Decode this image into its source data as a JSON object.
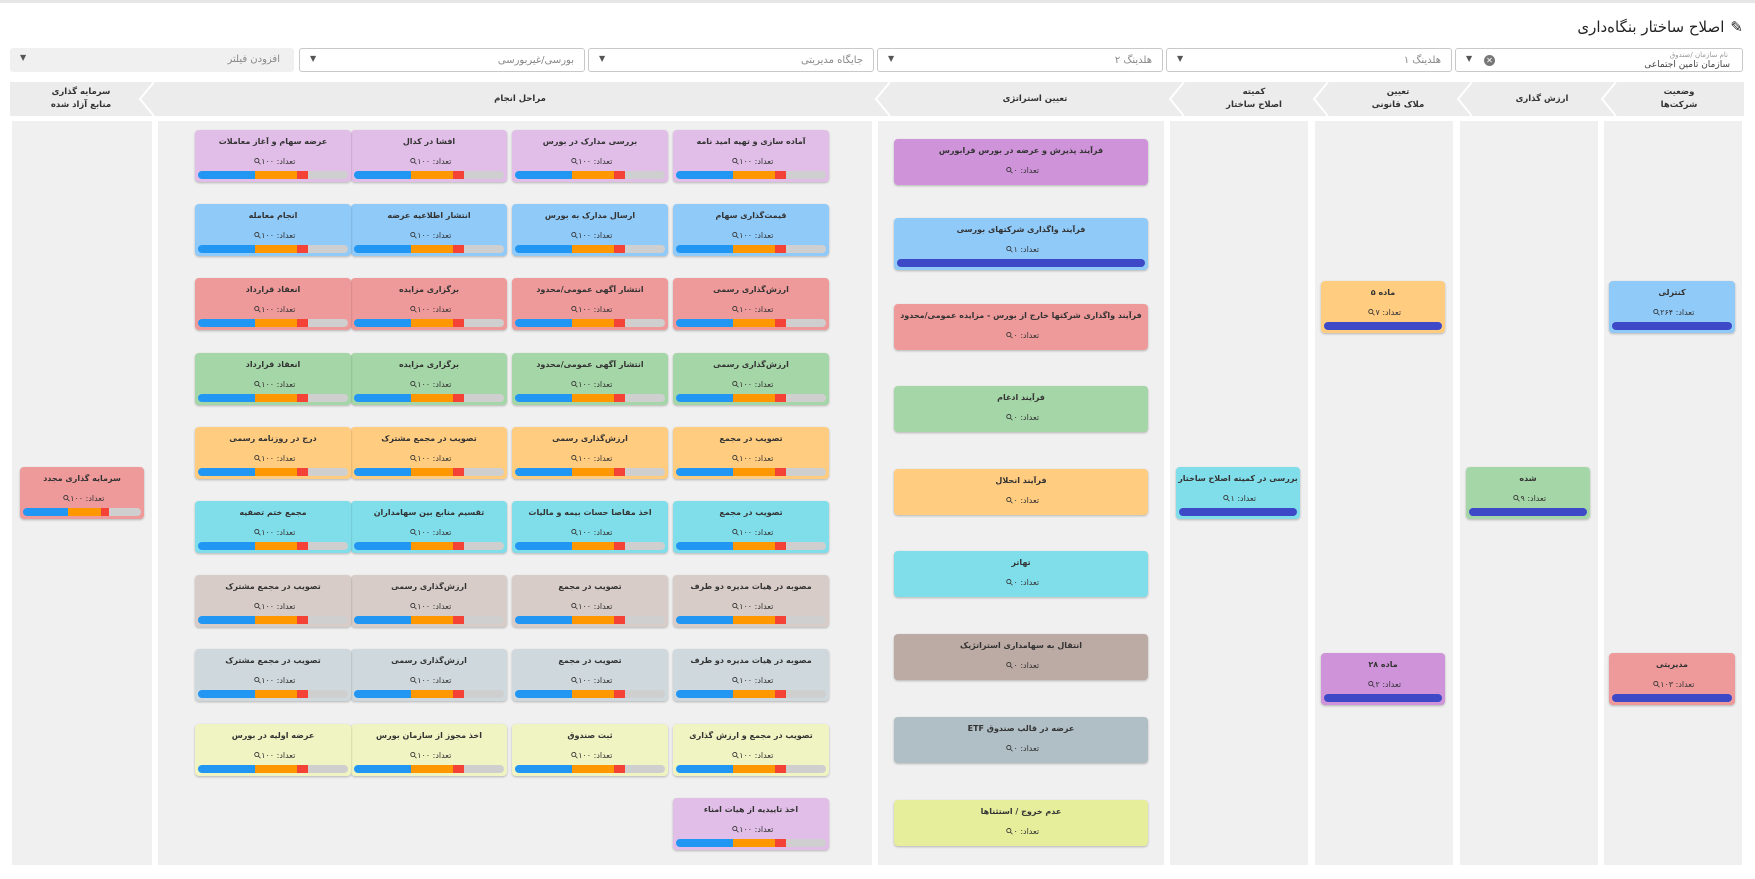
{
  "title": "اصلاح ساختار بنگاه‌داری",
  "filters": {
    "org_label": "نام سازمان /صندوق",
    "org_value": "سازمان تامین اجتماعی",
    "holding1": "هلدینگ ۱",
    "holding2": "هلدینگ ۲",
    "management": "جایگاه مدیریتی",
    "bourse": "بورسی/غیربورسی",
    "add_filter": "افزودن فیلتر"
  },
  "headers": {
    "status": [
      "وضعیت",
      "شرکت‌ها"
    ],
    "valuation": "ارزش گذاری",
    "legal": [
      "تعیین",
      "ملاک قانونی"
    ],
    "committee": [
      "کمیته",
      "اصلاح ساختار"
    ],
    "strategy": "تعیین استراتژی",
    "steps": "مراحل انجام",
    "reinvest": [
      "سرمایه گذاری",
      "منابع آزاد شده"
    ]
  },
  "count_prefix": "تعداد:",
  "status_cards": [
    {
      "title": "کنترلی",
      "count": "تعداد: ۲۶۴",
      "color": "#90caf9"
    },
    {
      "title": "مدیریتی",
      "count": "تعداد: ۱۰۳",
      "color": "#ef9a9a"
    }
  ],
  "valuation_cards": [
    {
      "title": "شده",
      "count": "تعداد: ۹",
      "color": "#a5d6a7"
    }
  ],
  "legal_cards": [
    {
      "title": "ماده ۵",
      "count": "تعداد: ۷",
      "color": "#ffcc80"
    },
    {
      "title": "ماده ۲۸",
      "count": "تعداد: ۲",
      "color": "#ce93d8"
    }
  ],
  "committee_cards": [
    {
      "title": "بررسی در کمیته اصلاح ساختار",
      "count": "تعداد: ۱",
      "color": "#80deea"
    }
  ],
  "strategy_cards": [
    {
      "title": "فرآیند پذیرش و عرضه در بورس فرابورس",
      "count": "تعداد: ۰",
      "color": "#ce93d8",
      "bar": false
    },
    {
      "title": "فرآیند واگذاری شرکتهای بورسی",
      "count": "تعداد: ۱",
      "color": "#90caf9",
      "bar": true
    },
    {
      "title": "فرآیند واگذاری شرکتها خارج از بورس - مزایده عمومی/محدود",
      "count": "تعداد: ۰",
      "color": "#ef9a9a",
      "bar": false
    },
    {
      "title": "فرآیند ادغام",
      "count": "تعداد: ۰",
      "color": "#a5d6a7",
      "bar": false
    },
    {
      "title": "فرآیند انحلال",
      "count": "تعداد: ۰",
      "color": "#ffcc80",
      "bar": false
    },
    {
      "title": "تهاتر",
      "count": "تعداد: ۰",
      "color": "#80deea",
      "bar": false
    },
    {
      "title": "انتقال به سهامداری استراتژیک",
      "count": "تعداد: ۰",
      "color": "#bcaaa4",
      "bar": false
    },
    {
      "title": "عرضه در قالب صندوق ETF",
      "count": "تعداد: ۰",
      "color": "#b0bec5",
      "bar": false
    },
    {
      "title": "عدم خروج / استثناها",
      "count": "تعداد: ۰",
      "color": "#e6ee9c",
      "bar": false
    }
  ],
  "steps_rows": [
    {
      "color": "#e1bee7",
      "items": [
        "آماده سازی و تهیه امید نامه",
        "بررسی مدارک در بورس",
        "افشا در کدال",
        "عرضه سهام و آغاز معاملات"
      ]
    },
    {
      "color": "#90caf9",
      "items": [
        "قیمت‌گذاری سهام",
        "ارسال مدارک به بورس",
        "انتشار اطلاعیه عرضه",
        "انجام معامله"
      ]
    },
    {
      "color": "#ef9a9a",
      "items": [
        "ارزش‌گذاری رسمی",
        "انتشار آگهی عمومی/محدود",
        "برگزاری مزایده",
        "انعقاد قرارداد"
      ]
    },
    {
      "color": "#a5d6a7",
      "items": [
        "ارزش‌گذاری رسمی",
        "انتشار آگهی عمومی/محدود",
        "برگزاری مزایده",
        "انعقاد قرارداد"
      ]
    },
    {
      "color": "#ffcc80",
      "items": [
        "تصویب در مجمع",
        "ارزش‌گذاری رسمی",
        "تصویب در مجمع مشترک",
        "درج در روزنامه رسمی"
      ]
    },
    {
      "color": "#80deea",
      "items": [
        "تصویب در مجمع",
        "اخذ مفاصا حسات بیمه و مالیات",
        "تقسیم منابع بین سهامداران",
        "مجمع ختم تصفیه"
      ]
    },
    {
      "color": "#d7ccc8",
      "items": [
        "مصوبه در هیات مدیره دو طرف",
        "تصویب در مجمع",
        "ارزش‌گذاری رسمی",
        "تصویب در مجمع مشترک"
      ]
    },
    {
      "color": "#cfd8dc",
      "items": [
        "مصوبه در هیات مدیره دو طرف",
        "تصویب در مجمع",
        "ارزش‌گذاری رسمی",
        "تصویب در مجمع مشترک"
      ]
    },
    {
      "color": "#f0f4c3",
      "items": [
        "تصویب در مجمع و ارزش گذاری",
        "ثبت صندوق",
        "اخذ مجوز از سازمان بورس",
        "عرضه اولیه در بورس"
      ]
    },
    {
      "color": "#e1bee7",
      "items": [
        "اخذ تاییدیه از هیات امناء"
      ]
    }
  ],
  "steps_count": "تعداد: ۱۰۰",
  "reinvest_cards": [
    {
      "title": "سرمایه گذاری مجدد",
      "count": "تعداد: ۱۰۰",
      "color": "#ef9a9a"
    }
  ],
  "progress": {
    "blue": 0.38,
    "orange": 0.28,
    "red": 0.07,
    "gray": 0.27
  },
  "colors": {
    "blue": "#2196f3",
    "orange": "#ff9800",
    "red": "#f44336",
    "gray": "#cfcfcf",
    "solid": "#3d49c7"
  }
}
